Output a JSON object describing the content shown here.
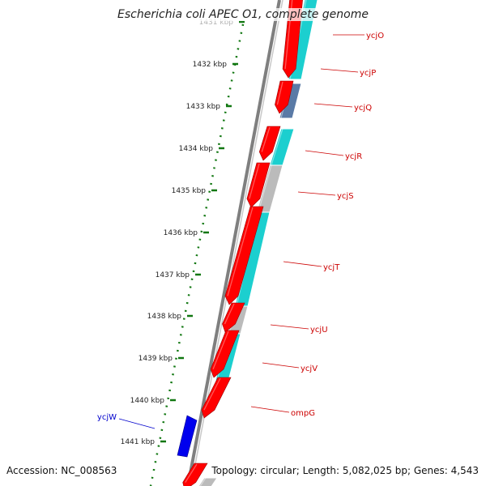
{
  "title": "Escherichia coli APEC O1, complete genome",
  "accession_text": "Accession: NC_008563",
  "summary_text": "Topology: circular; Length: 5,082,025 bp; Genes: 4,543",
  "ticks": [
    {
      "label": "1431 kbp",
      "faded": true
    },
    {
      "label": "1432 kbp"
    },
    {
      "label": "1433 kbp"
    },
    {
      "label": "1434 kbp"
    },
    {
      "label": "1435 kbp"
    },
    {
      "label": "1436 kbp"
    },
    {
      "label": "1437 kbp"
    },
    {
      "label": "1438 kbp"
    },
    {
      "label": "1439 kbp"
    },
    {
      "label": "1440 kbp"
    },
    {
      "label": "1441 kbp"
    }
  ],
  "gene_labels": [
    {
      "name": "ycjO",
      "color": "#cc0000"
    },
    {
      "name": "ycjP",
      "color": "#cc0000"
    },
    {
      "name": "ycjQ",
      "color": "#cc0000"
    },
    {
      "name": "ycjR",
      "color": "#cc0000"
    },
    {
      "name": "ycjS",
      "color": "#cc0000"
    },
    {
      "name": "ycjT",
      "color": "#cc0000"
    },
    {
      "name": "ycjU",
      "color": "#cc0000"
    },
    {
      "name": "ycjV",
      "color": "#cc0000"
    },
    {
      "name": "ompG",
      "color": "#cc0000"
    },
    {
      "name": "ycjW",
      "color": "#0000cc"
    }
  ],
  "colors": {
    "forward_gene": "#ff0000",
    "reverse_gene": "#0000ee",
    "cds_cyan": "#1ccfcf",
    "cds_gray": "#bbbbbb",
    "cds_steel": "#5a7aa6",
    "backbone": "#7f7f7f",
    "tick_green": "#117711",
    "tick_label": "#222222"
  }
}
